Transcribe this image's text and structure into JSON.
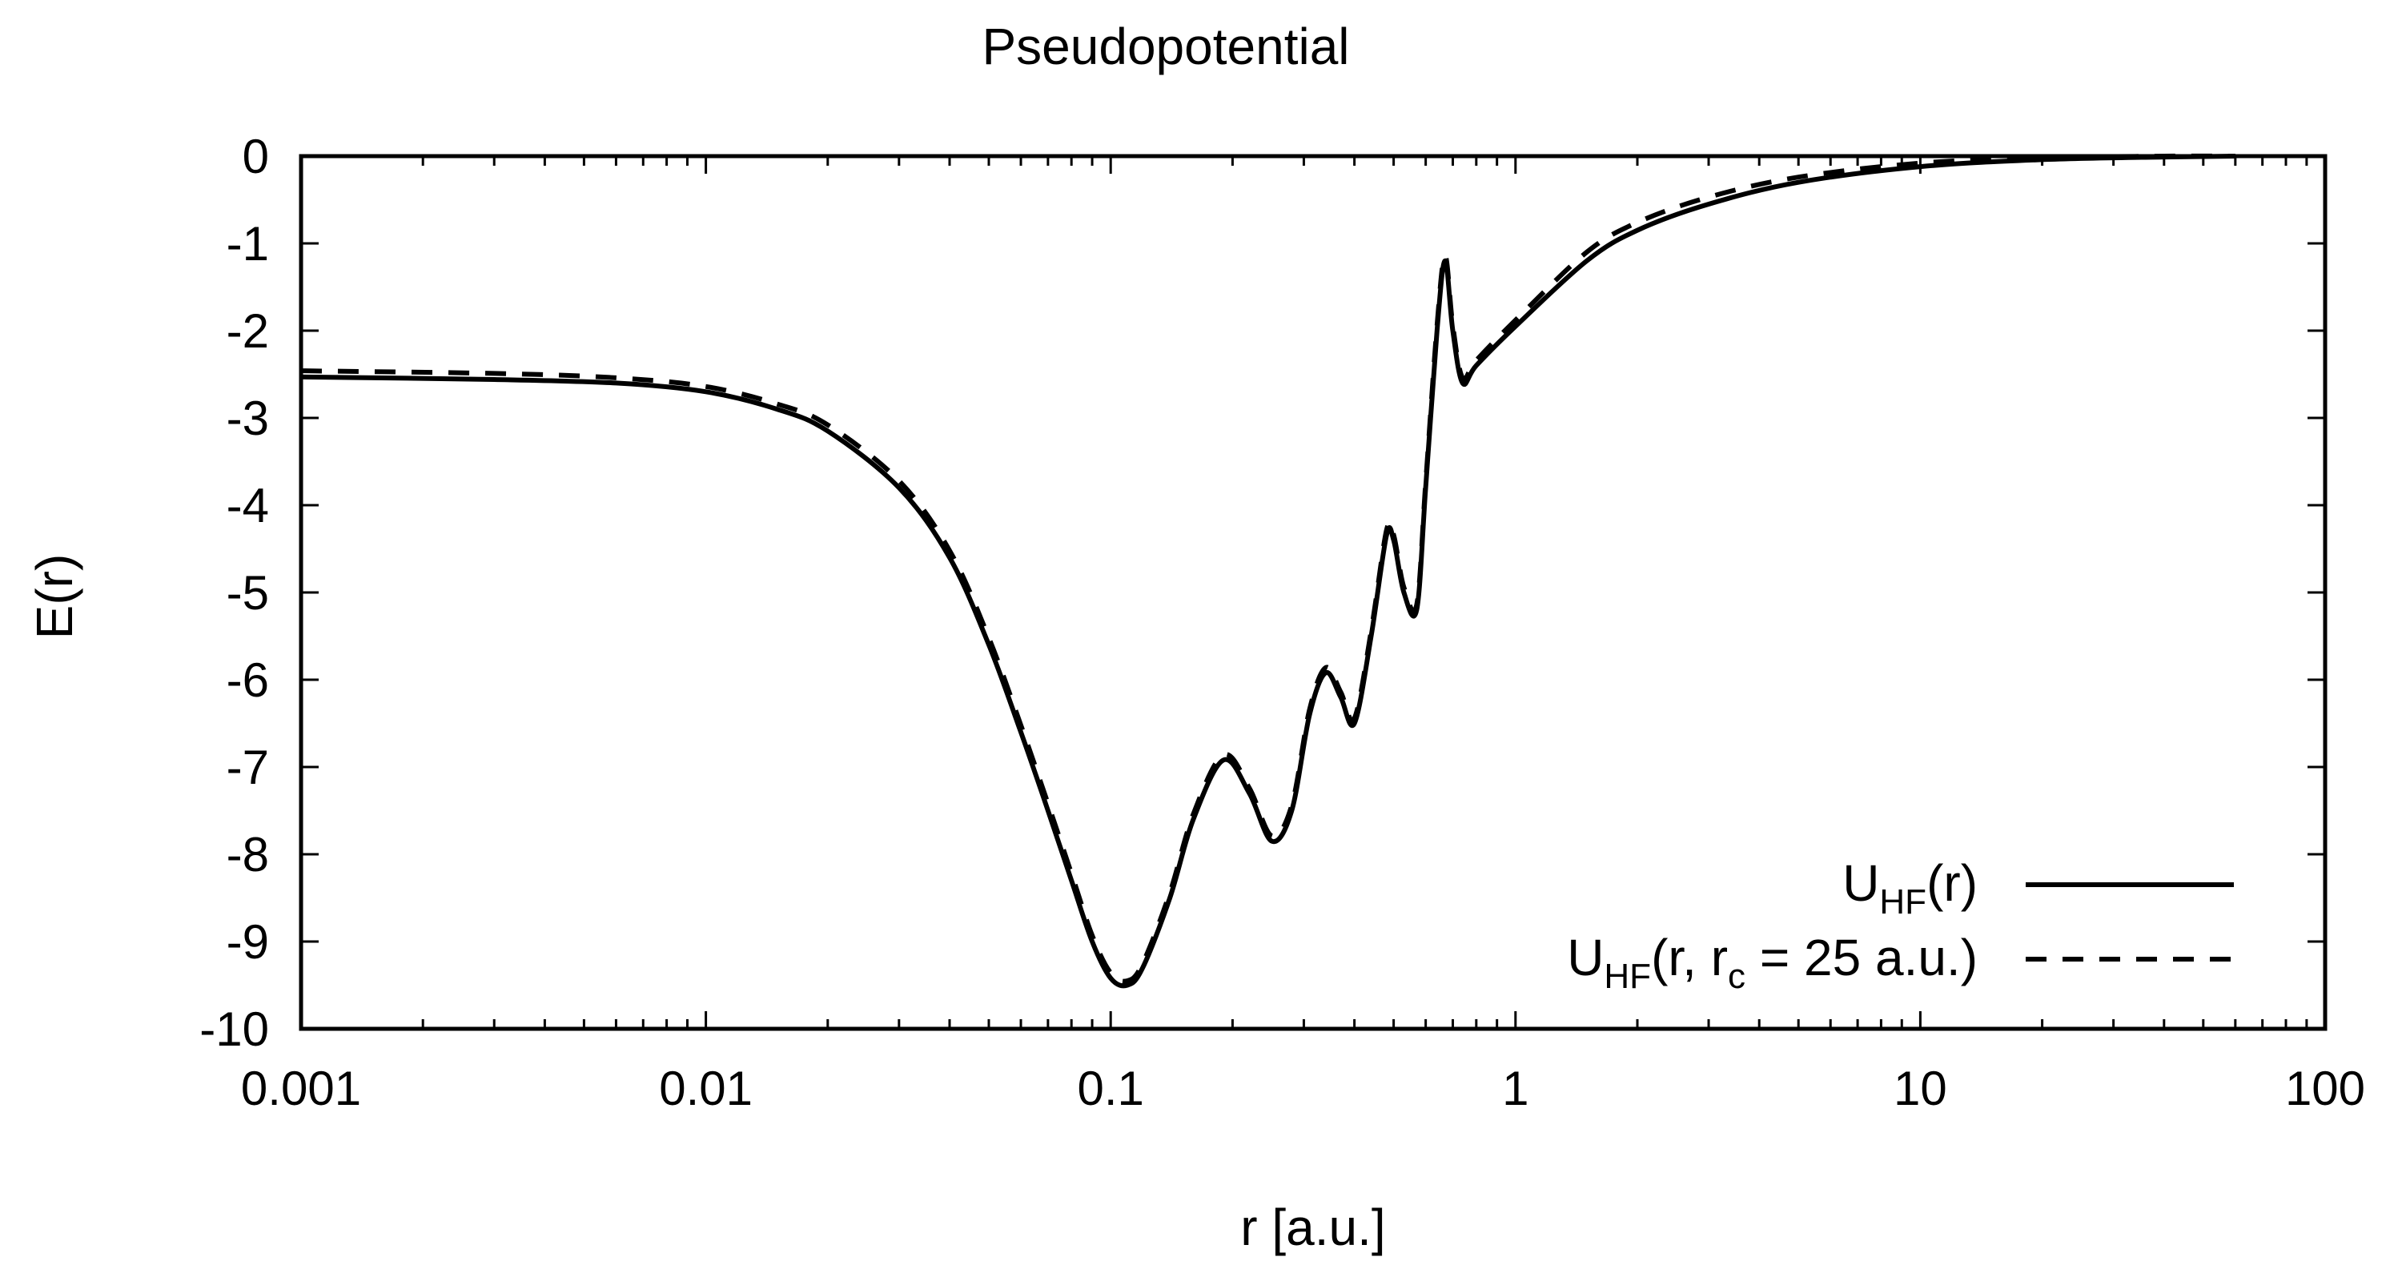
{
  "chart_data": {
    "type": "line",
    "title": "Pseudopotential",
    "xlabel": "r [a.u.]",
    "ylabel": "E(r)",
    "x_scale": "log",
    "xlim": [
      0.001,
      100
    ],
    "ylim": [
      -10,
      0
    ],
    "x_ticks": [
      0.001,
      0.01,
      0.1,
      1,
      10,
      100
    ],
    "x_tick_labels": [
      "0.001",
      "0.01",
      "0.1",
      "1",
      "10",
      "100"
    ],
    "y_ticks": [
      0,
      -1,
      -2,
      -3,
      -4,
      -5,
      -6,
      -7,
      -8,
      -9,
      -10
    ],
    "y_tick_labels": [
      "0",
      "-1",
      "-2",
      "-3",
      "-4",
      "-5",
      "-6",
      "-7",
      "-8",
      "-9",
      "-10"
    ],
    "grid": false,
    "legend_position": "bottom-right",
    "series": [
      {
        "name": "U_HF(r)",
        "legend_main": "U",
        "legend_sub": "HF",
        "legend_rest": "(r)",
        "style": "solid",
        "color": "#000000",
        "x": [
          0.001,
          0.003,
          0.006,
          0.01,
          0.015,
          0.02,
          0.03,
          0.04,
          0.05,
          0.06,
          0.07,
          0.08,
          0.09,
          0.1,
          0.11,
          0.12,
          0.14,
          0.16,
          0.19,
          0.22,
          0.25,
          0.28,
          0.31,
          0.34,
          0.37,
          0.4,
          0.44,
          0.48,
          0.5,
          0.53,
          0.57,
          0.6,
          0.64,
          0.67,
          0.7,
          0.74,
          0.8,
          1,
          1.5,
          2,
          3,
          5,
          10,
          20,
          40,
          60
        ],
        "y": [
          -2.53,
          -2.56,
          -2.6,
          -2.7,
          -2.9,
          -3.15,
          -3.8,
          -4.6,
          -5.6,
          -6.6,
          -7.5,
          -8.3,
          -9.0,
          -9.42,
          -9.5,
          -9.3,
          -8.5,
          -7.6,
          -6.92,
          -7.3,
          -7.85,
          -7.5,
          -6.4,
          -5.92,
          -6.2,
          -6.5,
          -5.5,
          -4.35,
          -4.4,
          -5.0,
          -5.2,
          -3.8,
          -2.0,
          -1.2,
          -2.0,
          -2.6,
          -2.4,
          -1.95,
          -1.2,
          -0.85,
          -0.55,
          -0.3,
          -0.12,
          -0.04,
          -0.01,
          0.0
        ]
      },
      {
        "name": "U_HF(r, r_c = 25 a.u.)",
        "legend_main": "U",
        "legend_sub": "HF",
        "legend_mid": "(r, r",
        "legend_sub2": "c",
        "legend_rest": " = 25 a.u.)",
        "style": "dashed",
        "color": "#000000",
        "x": [
          0.001,
          0.003,
          0.006,
          0.01,
          0.015,
          0.02,
          0.03,
          0.04,
          0.05,
          0.06,
          0.07,
          0.08,
          0.09,
          0.1,
          0.11,
          0.12,
          0.14,
          0.16,
          0.19,
          0.22,
          0.25,
          0.28,
          0.31,
          0.34,
          0.37,
          0.4,
          0.44,
          0.48,
          0.5,
          0.53,
          0.57,
          0.6,
          0.64,
          0.67,
          0.7,
          0.74,
          0.8,
          1,
          1.5,
          2,
          3,
          5,
          10,
          20,
          40,
          60
        ],
        "y": [
          -2.46,
          -2.49,
          -2.54,
          -2.64,
          -2.84,
          -3.08,
          -3.72,
          -4.52,
          -5.52,
          -6.52,
          -7.42,
          -8.22,
          -8.93,
          -9.36,
          -9.45,
          -9.25,
          -8.44,
          -7.54,
          -6.86,
          -7.24,
          -7.79,
          -7.44,
          -6.34,
          -5.86,
          -6.14,
          -6.44,
          -5.44,
          -4.29,
          -4.34,
          -4.94,
          -5.14,
          -3.74,
          -1.94,
          -1.14,
          -1.94,
          -2.54,
          -2.34,
          -1.88,
          -1.1,
          -0.76,
          -0.47,
          -0.24,
          -0.08,
          -0.02,
          0.0,
          0.0
        ]
      }
    ]
  }
}
